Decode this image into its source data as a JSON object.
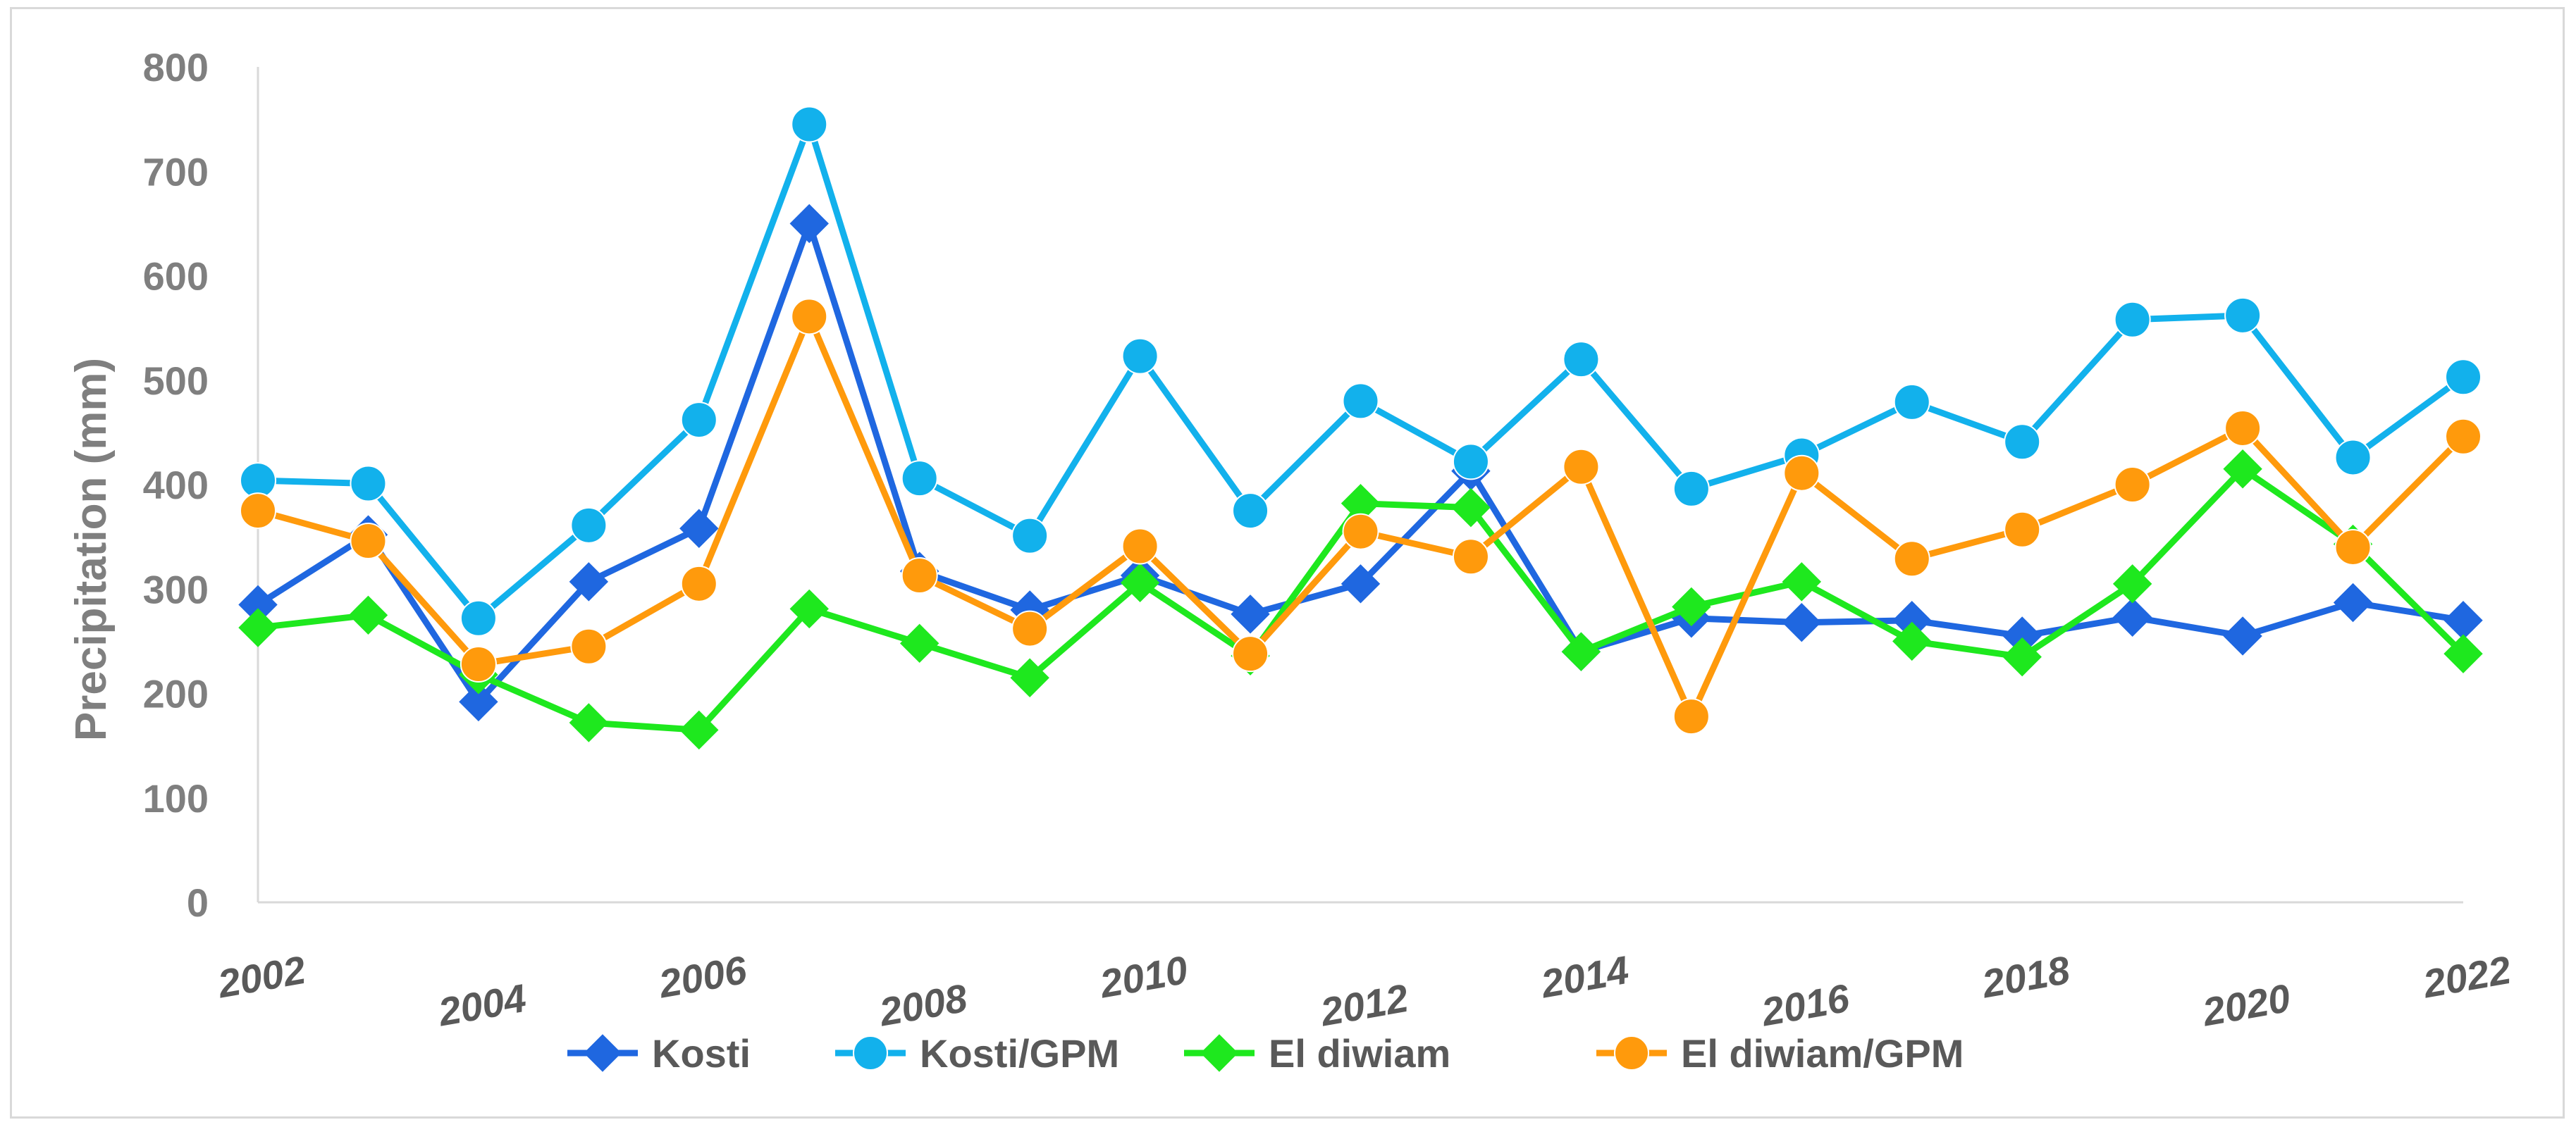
{
  "chart_data": {
    "type": "line",
    "title": "",
    "xlabel": "",
    "ylabel": "Precipitation (mm)",
    "ylim": [
      0,
      800
    ],
    "yticks": [
      0,
      100,
      200,
      300,
      400,
      500,
      600,
      700,
      800
    ],
    "xlim": [
      2002,
      2022
    ],
    "xticks": [
      2002,
      2004,
      2006,
      2008,
      2010,
      2012,
      2014,
      2016,
      2018,
      2020,
      2022
    ],
    "grid": false,
    "legend_position": "bottom",
    "x": [
      2002,
      2003,
      2004,
      2005,
      2006,
      2007,
      2008,
      2009,
      2010,
      2011,
      2012,
      2013,
      2014,
      2015,
      2016,
      2017,
      2018,
      2019,
      2020,
      2021,
      2022
    ],
    "series": [
      {
        "name": "Kosti",
        "color": "#1f67e0",
        "marker": "diamond",
        "values": [
          285,
          352,
          192,
          307,
          358,
          650,
          317,
          280,
          313,
          276,
          305,
          413,
          240,
          272,
          268,
          270,
          255,
          273,
          255,
          287,
          270
        ]
      },
      {
        "name": "Kosti/GPM",
        "color": "#12b1ec",
        "marker": "circle",
        "values": [
          404,
          401,
          272,
          361,
          462,
          745,
          406,
          351,
          523,
          375,
          480,
          422,
          520,
          396,
          428,
          479,
          441,
          558,
          562,
          426,
          503
        ]
      },
      {
        "name": "El diwiam",
        "color": "#1ee81e",
        "marker": "diamond",
        "values": [
          263,
          275,
          218,
          172,
          165,
          281,
          248,
          215,
          306,
          236,
          382,
          378,
          240,
          283,
          307,
          250,
          235,
          305,
          415,
          343,
          238
        ]
      },
      {
        "name": "El diwiam/GPM",
        "color": "#ff9a0c",
        "marker": "circle",
        "values": [
          375,
          346,
          228,
          245,
          305,
          561,
          313,
          262,
          341,
          238,
          355,
          331,
          417,
          178,
          411,
          329,
          357,
          400,
          454,
          340,
          446
        ]
      }
    ]
  }
}
